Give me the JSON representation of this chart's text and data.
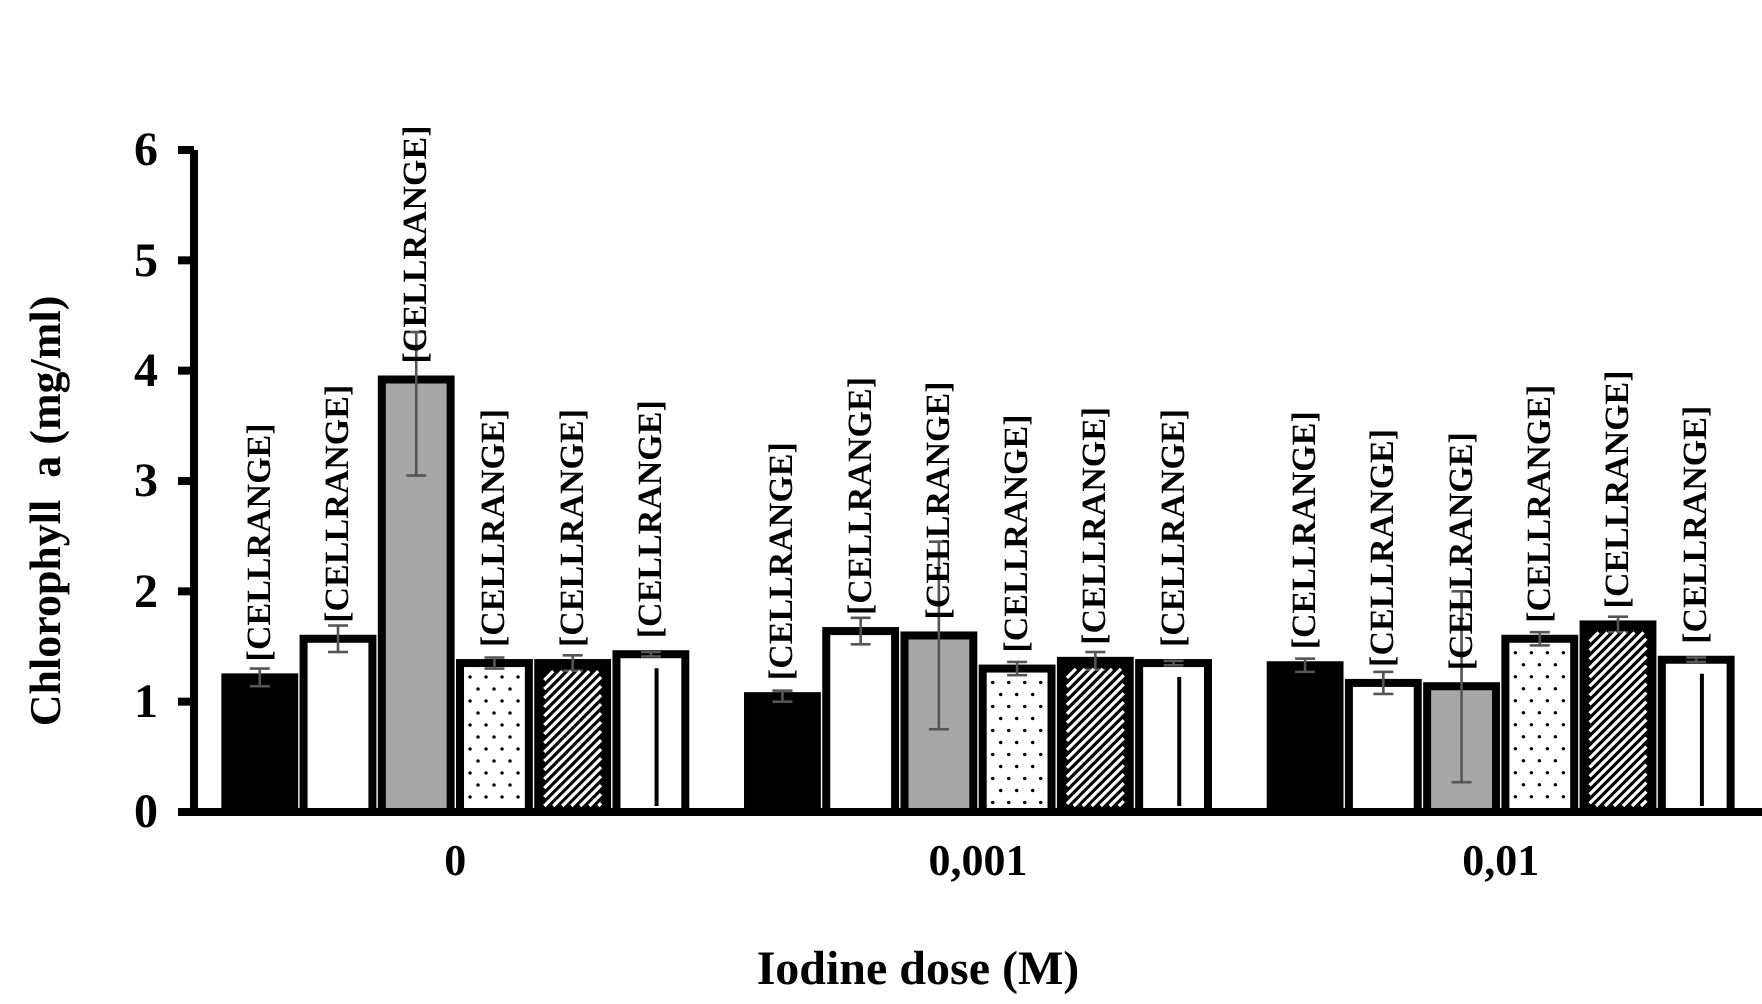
{
  "chart_data": {
    "type": "bar",
    "xlabel": "Iodine dose (M)",
    "ylabel": "Chlorophyll  a (mg/ml)",
    "categories": [
      "0",
      "0,001",
      "0,01"
    ],
    "ylim": [
      0,
      6
    ],
    "yticks": [
      0,
      1,
      2,
      3,
      4,
      5,
      6
    ],
    "grid": false,
    "series": [
      {
        "color": "#000000",
        "values": [
          1.22,
          1.05,
          1.33
        ],
        "errors": [
          0.08,
          0.05,
          0.06
        ],
        "value_labels": [
          "[CELLRANGE]",
          "[CELLRANGE]",
          "[CELLRANGE]"
        ]
      },
      {
        "color": "#ffffff",
        "values": [
          1.57,
          1.64,
          1.17
        ],
        "errors": [
          0.12,
          0.12,
          0.1
        ],
        "value_labels": [
          "[CELLRANGE]",
          "[CELLRANGE]",
          "[CELLRANGE]"
        ]
      },
      {
        "color": "#a6a6a6",
        "values": [
          3.92,
          1.6,
          1.14
        ],
        "errors": [
          [
            3.05,
            4.35
          ],
          [
            0.75,
            2.45
          ],
          [
            0.27,
            2.0
          ]
        ],
        "value_labels": [
          "[CELLRANGE]",
          "[CELLRANGE]",
          "[CELLRANGE]"
        ]
      },
      {
        "color": "#ffffff",
        "values": [
          1.35,
          1.3,
          1.57
        ],
        "errors": [
          0.05,
          0.06,
          0.06
        ],
        "value_labels": [
          "[CELLRANGE]",
          "[CELLRANGE]",
          "[CELLRANGE]"
        ]
      },
      {
        "color": "#000000",
        "values": [
          1.35,
          1.37,
          1.7
        ],
        "errors": [
          0.07,
          0.08,
          0.07
        ],
        "value_labels": [
          "[CELLRANGE]",
          "[CELLRANGE]",
          "[CELLRANGE]"
        ]
      },
      {
        "color": "#ffffff",
        "values": [
          1.43,
          1.35,
          1.38
        ],
        "errors": [
          0.02,
          0.02,
          0.02
        ],
        "value_labels": [
          "[CELLRANGE]",
          "[CELLRANGE]",
          "[CELLRANGE]"
        ]
      }
    ]
  }
}
